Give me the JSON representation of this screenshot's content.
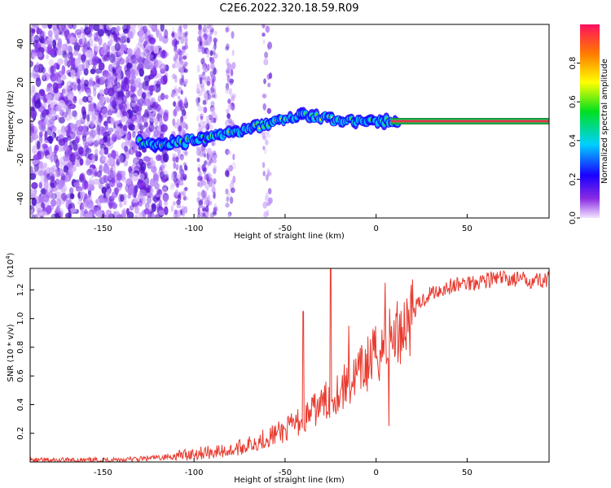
{
  "title": "C2E6.2022.320.18.59.R09",
  "colors": {
    "snr_line": "#e83a2f",
    "ridge_core": "#e8324a",
    "scatter": "#6a1fd8"
  },
  "chart_data": [
    {
      "type": "heatmap",
      "xlabel": "Height of straight line (km)",
      "ylabel": "Frequency (Hz)",
      "xlim": [
        -190,
        95
      ],
      "ylim": [
        -50,
        50
      ],
      "xticks": [
        -150,
        -100,
        -50,
        0,
        50
      ],
      "yticks": [
        -40,
        -20,
        0,
        20,
        40
      ],
      "colorbar": {
        "label": "Normalized spectral amplitude",
        "range": [
          0,
          1
        ],
        "ticks": [
          "0.0",
          "0.2",
          "0.4",
          "0.6",
          "0.8"
        ]
      },
      "ridge": [
        {
          "x": -130,
          "y": -11
        },
        {
          "x": -120,
          "y": -12
        },
        {
          "x": -110,
          "y": -11
        },
        {
          "x": -100,
          "y": -10
        },
        {
          "x": -90,
          "y": -8
        },
        {
          "x": -80,
          "y": -6
        },
        {
          "x": -70,
          "y": -4
        },
        {
          "x": -60,
          "y": -1
        },
        {
          "x": -50,
          "y": 1
        },
        {
          "x": -40,
          "y": 3
        },
        {
          "x": -35,
          "y": 3
        },
        {
          "x": -30,
          "y": 2
        },
        {
          "x": -25,
          "y": 1
        },
        {
          "x": -20,
          "y": 0
        },
        {
          "x": -10,
          "y": 0
        },
        {
          "x": 0,
          "y": 0
        },
        {
          "x": 10,
          "y": 0
        },
        {
          "x": 95,
          "y": 0
        }
      ]
    },
    {
      "type": "line",
      "xlabel": "Height of straight line (km)",
      "ylabel": "SNR (10 * v/v)",
      "yscale_note": "(x10",
      "yscale_exp": "4",
      "xlim": [
        -190,
        95
      ],
      "ylim": [
        0,
        1.35
      ],
      "xticks": [
        -150,
        -100,
        -50,
        0,
        50
      ],
      "yticks": [
        "0.2",
        "0.4",
        "0.6",
        "0.8",
        "1.0",
        "1.2"
      ],
      "ytick_values": [
        0.2,
        0.4,
        0.6,
        0.8,
        1.0,
        1.2
      ],
      "x": [
        -190,
        -160,
        -130,
        -120,
        -110,
        -100,
        -90,
        -80,
        -70,
        -60,
        -50,
        -45,
        -40,
        -35,
        -30,
        -25,
        -20,
        -15,
        -10,
        -5,
        0,
        5,
        10,
        15,
        20,
        25,
        30,
        40,
        50,
        60,
        70,
        80,
        95
      ],
      "y": [
        0.01,
        0.01,
        0.02,
        0.03,
        0.04,
        0.06,
        0.07,
        0.08,
        0.12,
        0.17,
        0.22,
        0.26,
        0.3,
        0.35,
        0.4,
        0.45,
        0.5,
        0.55,
        0.6,
        0.68,
        0.75,
        0.82,
        0.88,
        0.95,
        1.05,
        1.12,
        1.18,
        1.22,
        1.25,
        1.27,
        1.28,
        1.27,
        1.27
      ],
      "spikes": [
        {
          "x": -40,
          "y": 1.05
        },
        {
          "x": -25,
          "y": 1.35
        },
        {
          "x": -15,
          "y": 0.95
        },
        {
          "x": 5,
          "y": 1.25
        },
        {
          "x": 7,
          "y": 0.25
        }
      ]
    }
  ],
  "top_xlabel": "Height of straight line (km)",
  "bottom_xlabel": "Height of straight line (km)"
}
